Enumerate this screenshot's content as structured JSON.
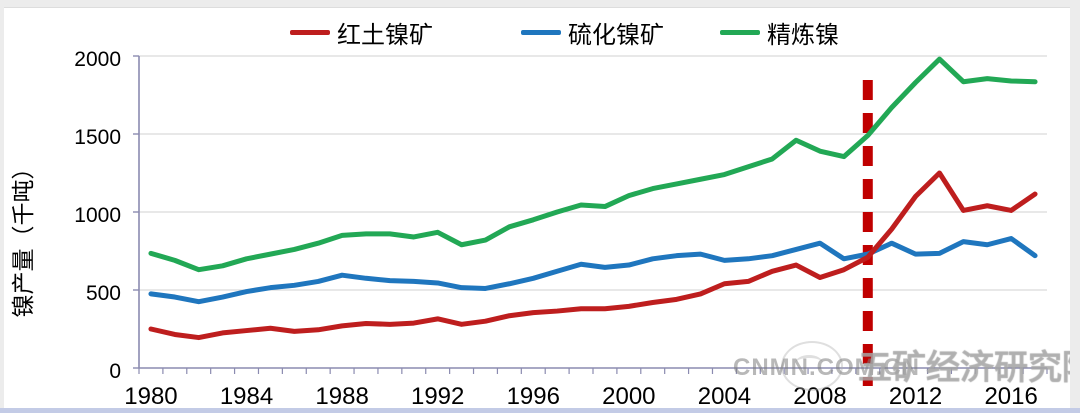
{
  "y_axis": {
    "title": "镍产量（千吨）",
    "ticks": [
      0,
      500,
      1000,
      1500,
      2000
    ]
  },
  "x_axis": {
    "tick_labels": [
      "1980",
      "1984",
      "1988",
      "1992",
      "1996",
      "2000",
      "2004",
      "2008",
      "2012",
      "2016"
    ]
  },
  "legend": {
    "items": [
      {
        "id": "laterite",
        "label": "红土镍矿",
        "color": "#be1e1e"
      },
      {
        "id": "sulfide",
        "label": "硫化镍矿",
        "color": "#1f76be"
      },
      {
        "id": "refined",
        "label": "精炼镍",
        "color": "#22a855"
      }
    ]
  },
  "watermark": {
    "site": "CNMN.COM.CN",
    "org": "五矿经济研究院"
  },
  "chart_data": {
    "type": "line",
    "title": "",
    "xlabel": "",
    "ylabel": "镍产量（千吨）",
    "ylim": [
      0,
      2000
    ],
    "grid": true,
    "legend_position": "top",
    "x": [
      1980,
      1981,
      1982,
      1983,
      1984,
      1985,
      1986,
      1987,
      1988,
      1989,
      1990,
      1991,
      1992,
      1993,
      1994,
      1995,
      1996,
      1997,
      1998,
      1999,
      2000,
      2001,
      2002,
      2003,
      2004,
      2005,
      2006,
      2007,
      2008,
      2009,
      2010,
      2011,
      2012,
      2013,
      2014,
      2015,
      2016,
      2017
    ],
    "series": [
      {
        "id": "laterite",
        "name": "红土镍矿",
        "color": "#be1e1e",
        "values": [
          250,
          215,
          195,
          225,
          240,
          255,
          235,
          245,
          270,
          285,
          280,
          288,
          315,
          280,
          300,
          335,
          355,
          365,
          380,
          380,
          395,
          420,
          440,
          475,
          540,
          555,
          620,
          660,
          580,
          630,
          710,
          890,
          1100,
          1250,
          1010,
          1040,
          1010,
          1115
        ]
      },
      {
        "id": "sulfide",
        "name": "硫化镍矿",
        "color": "#1f76be",
        "values": [
          475,
          455,
          425,
          455,
          490,
          515,
          530,
          555,
          595,
          575,
          560,
          555,
          545,
          515,
          510,
          540,
          575,
          620,
          665,
          645,
          660,
          700,
          720,
          730,
          690,
          700,
          720,
          760,
          800,
          700,
          730,
          800,
          730,
          735,
          810,
          790,
          830,
          720
        ]
      },
      {
        "id": "refined",
        "name": "精炼镍",
        "color": "#22a855",
        "values": [
          735,
          690,
          630,
          655,
          700,
          730,
          760,
          800,
          850,
          860,
          860,
          840,
          870,
          790,
          820,
          905,
          950,
          1000,
          1045,
          1035,
          1105,
          1150,
          1180,
          1210,
          1240,
          1290,
          1340,
          1460,
          1390,
          1355,
          1490,
          1670,
          1830,
          1980,
          1835,
          1855,
          1840,
          1835
        ]
      }
    ],
    "annotations": [
      {
        "type": "vline",
        "x": 2010,
        "style": "dashed",
        "color": "#c00000"
      }
    ]
  }
}
